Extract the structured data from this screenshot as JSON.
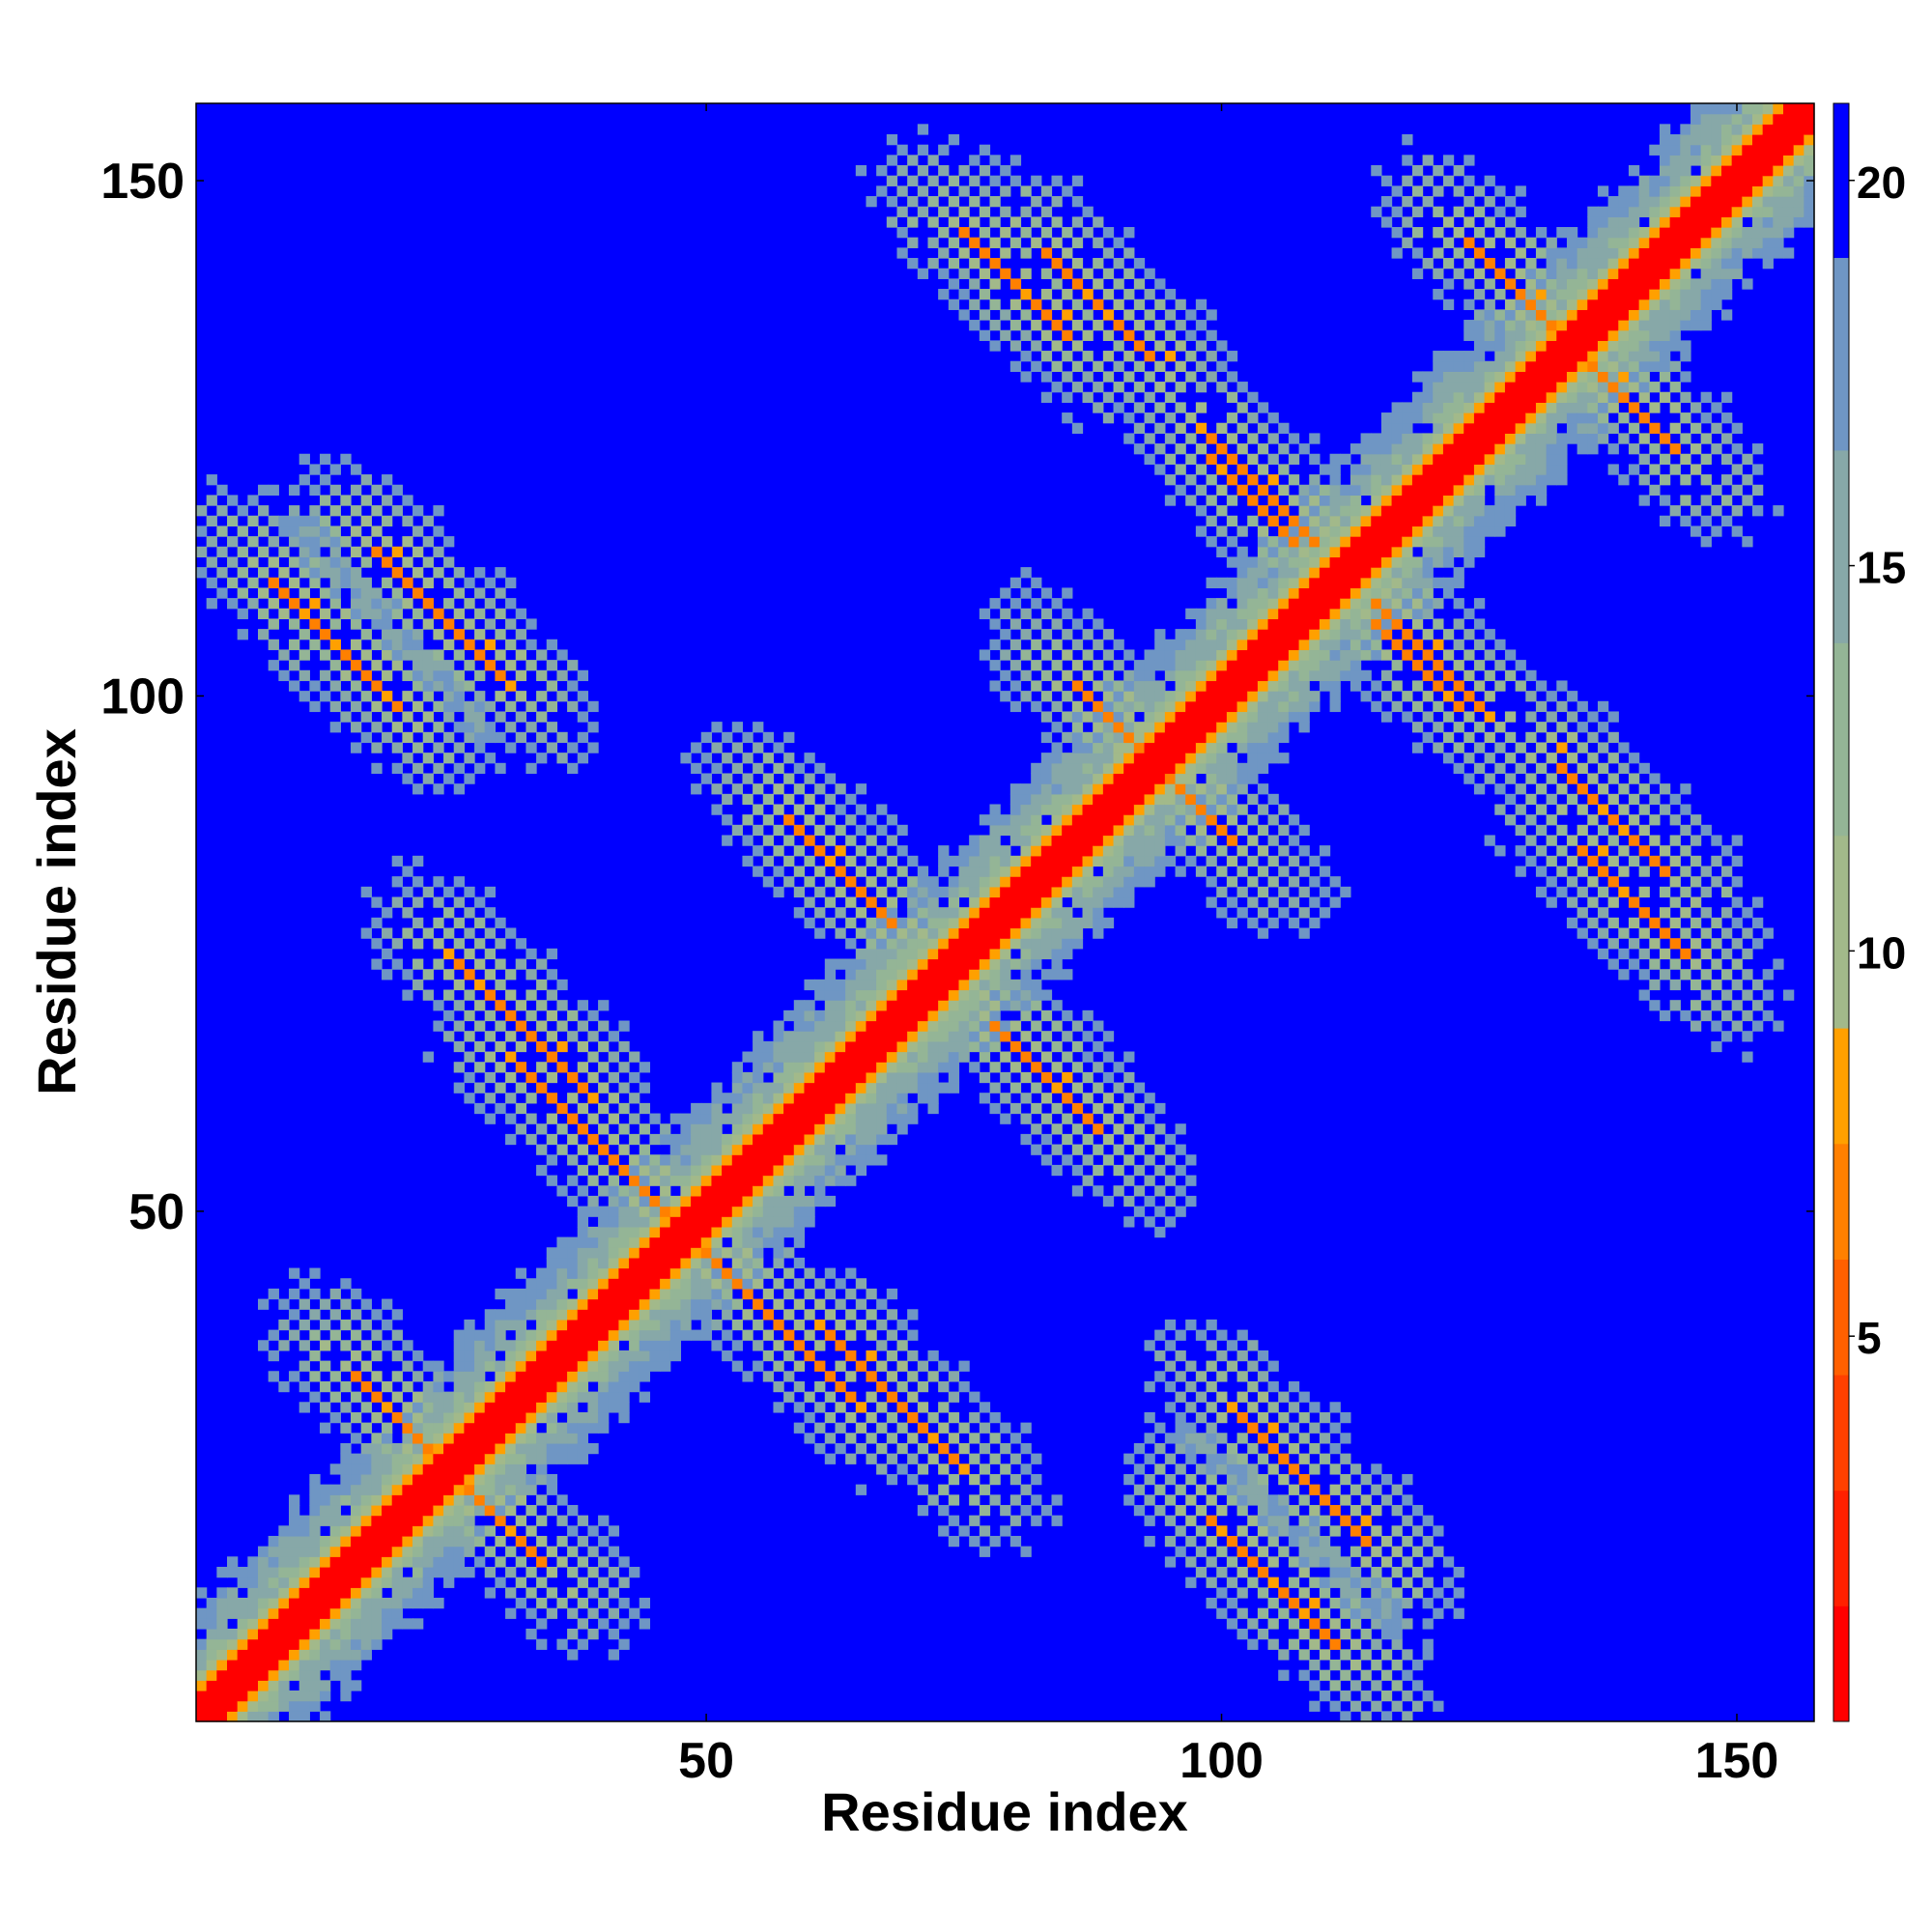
{
  "chart_data": {
    "type": "heatmap",
    "subtype": "residue-residue distance map (symmetric)",
    "xlabel": "Residue index",
    "ylabel": "Residue index",
    "xlim": [
      1,
      157
    ],
    "ylim": [
      1,
      157
    ],
    "x_ticks": [
      50,
      100,
      150
    ],
    "y_ticks": [
      50,
      100,
      150
    ],
    "colorbar": {
      "range": [
        0,
        21
      ],
      "ticks": [
        5,
        10,
        15,
        20
      ],
      "levels": [
        {
          "from": 0,
          "to": 1.5,
          "color": "#ff0000"
        },
        {
          "from": 1.5,
          "to": 3,
          "color": "#ff2000"
        },
        {
          "from": 3,
          "to": 4.5,
          "color": "#ff4000"
        },
        {
          "from": 4.5,
          "to": 6,
          "color": "#ff6000"
        },
        {
          "from": 6,
          "to": 7.5,
          "color": "#ff8000"
        },
        {
          "from": 7.5,
          "to": 9,
          "color": "#ffa000"
        },
        {
          "from": 9,
          "to": 11.5,
          "color": "#a2b98a"
        },
        {
          "from": 11.5,
          "to": 14,
          "color": "#94b596"
        },
        {
          "from": 14,
          "to": 16.5,
          "color": "#87a8a8"
        },
        {
          "from": 16.5,
          "to": 19,
          "color": "#6f96c4"
        },
        {
          "from": 19,
          "to": 21,
          "color": "#0000ff"
        }
      ]
    },
    "background_value_color": "#0000ff",
    "diagonal_color": "#ff0000",
    "contact_features": [
      {
        "type": "diagonal",
        "from": 1,
        "to": 157
      },
      {
        "type": "antiparallel",
        "center": [
          32,
          68
        ],
        "half_length": 6
      },
      {
        "type": "antiparallel",
        "center": [
          68,
          32
        ],
        "half_length": 6
      },
      {
        "type": "antiparallel",
        "center": [
          14,
          105
        ],
        "half_length": 6
      },
      {
        "type": "antiparallel",
        "center": [
          105,
          14
        ],
        "half_length": 6
      },
      {
        "type": "antiparallel",
        "center": [
          30,
          20
        ],
        "half_length": 4
      },
      {
        "type": "antiparallel",
        "center": [
          20,
          30
        ],
        "half_length": 4
      },
      {
        "type": "antiparallel",
        "center": [
          57,
          39
        ],
        "half_length": 7
      },
      {
        "type": "antiparallel",
        "center": [
          39,
          57
        ],
        "half_length": 7
      },
      {
        "type": "antiparallel",
        "center": [
          63,
          83
        ],
        "half_length": 5
      },
      {
        "type": "antiparallel",
        "center": [
          83,
          63
        ],
        "half_length": 5
      },
      {
        "type": "antiparallel",
        "center": [
          80,
          140
        ],
        "half_length": 5
      },
      {
        "type": "antiparallel",
        "center": [
          140,
          80
        ],
        "half_length": 5
      },
      {
        "type": "antiparallel",
        "center": [
          104,
          120
        ],
        "half_length": 5
      },
      {
        "type": "antiparallel",
        "center": [
          120,
          104
        ],
        "half_length": 5
      },
      {
        "type": "antiparallel",
        "center": [
          119,
          103
        ],
        "half_length": 4
      },
      {
        "type": "antiparallel",
        "center": [
          103,
          119
        ],
        "half_length": 4
      },
      {
        "type": "antiparallel",
        "center": [
          108,
          24
        ],
        "half_length": 6
      },
      {
        "type": "antiparallel",
        "center": [
          24,
          108
        ],
        "half_length": 6
      },
      {
        "type": "antiparallel",
        "center": [
          138,
          88
        ],
        "half_length": 5
      },
      {
        "type": "antiparallel",
        "center": [
          88,
          138
        ],
        "half_length": 5
      },
      {
        "type": "antiparallel",
        "center": [
          129,
          139
        ],
        "half_length": 5
      },
      {
        "type": "antiparallel",
        "center": [
          139,
          129
        ],
        "half_length": 5
      },
      {
        "type": "antiparallel",
        "center": [
          90,
          97
        ],
        "half_length": 4
      },
      {
        "type": "antiparallel",
        "center": [
          97,
          90
        ],
        "half_length": 4
      }
    ]
  }
}
